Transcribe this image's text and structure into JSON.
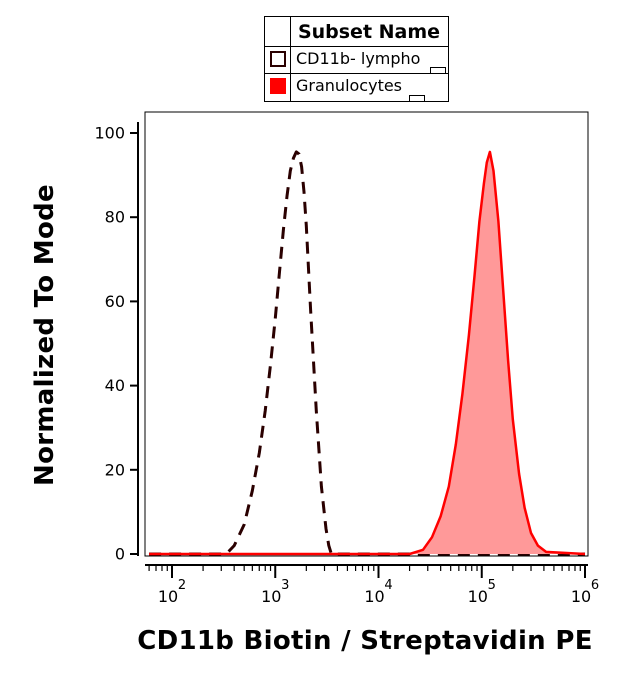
{
  "legend": {
    "title": "Subset Name",
    "items": [
      {
        "label": "CD11b- lympho",
        "style": "dashed-outline",
        "color": "#2a0000"
      },
      {
        "label": "Granulocytes",
        "style": "filled",
        "color": "#ff0000",
        "fill": "#ff9999"
      }
    ]
  },
  "chart_data": {
    "type": "area",
    "xlabel": "CD11b Biotin / Streptavidin PE",
    "ylabel": "Normalized To Mode",
    "xscale": "log",
    "xlim": [
      60,
      1000000
    ],
    "ylim": [
      0,
      100
    ],
    "x_ticks": [
      {
        "label": "10",
        "exp": "2",
        "value": 100
      },
      {
        "label": "10",
        "exp": "3",
        "value": 1000
      },
      {
        "label": "10",
        "exp": "4",
        "value": 10000
      },
      {
        "label": "10",
        "exp": "5",
        "value": 100000
      },
      {
        "label": "10",
        "exp": "6",
        "value": 1000000
      }
    ],
    "y_ticks": [
      "0",
      "20",
      "40",
      "60",
      "80",
      "100"
    ],
    "grid": false,
    "legend_position": "top",
    "series": [
      {
        "name": "CD11b- lympho",
        "color": "#2a0000",
        "line_style": "dashed",
        "x": [
          60,
          300,
          350,
          400,
          500,
          600,
          700,
          800,
          900,
          1000,
          1100,
          1200,
          1300,
          1400,
          1500,
          1600,
          1700,
          1800,
          1900,
          2000,
          2200,
          2500,
          2800,
          3100,
          3300,
          3500,
          1000000
        ],
        "y": [
          0,
          0,
          0.5,
          2,
          7,
          15,
          24,
          34,
          45,
          56,
          67,
          77,
          85,
          91,
          94,
          95.5,
          95,
          92,
          86,
          78,
          58,
          34,
          16,
          6,
          2,
          0,
          0
        ]
      },
      {
        "name": "Granulocytes",
        "color": "#ff0000",
        "fill": "#ff9999",
        "line_style": "solid",
        "x": [
          60,
          20000,
          27000,
          33000,
          40000,
          48000,
          56000,
          65000,
          75000,
          85000,
          95000,
          105000,
          112000,
          120000,
          130000,
          145000,
          160000,
          180000,
          200000,
          230000,
          260000,
          300000,
          350000,
          420000,
          1000000
        ],
        "y": [
          0,
          0,
          1,
          4,
          9,
          16,
          26,
          38,
          52,
          66,
          79,
          88,
          93,
          95.5,
          91,
          79,
          64,
          46,
          32,
          19,
          11,
          5,
          2,
          0.5,
          0
        ]
      }
    ]
  }
}
